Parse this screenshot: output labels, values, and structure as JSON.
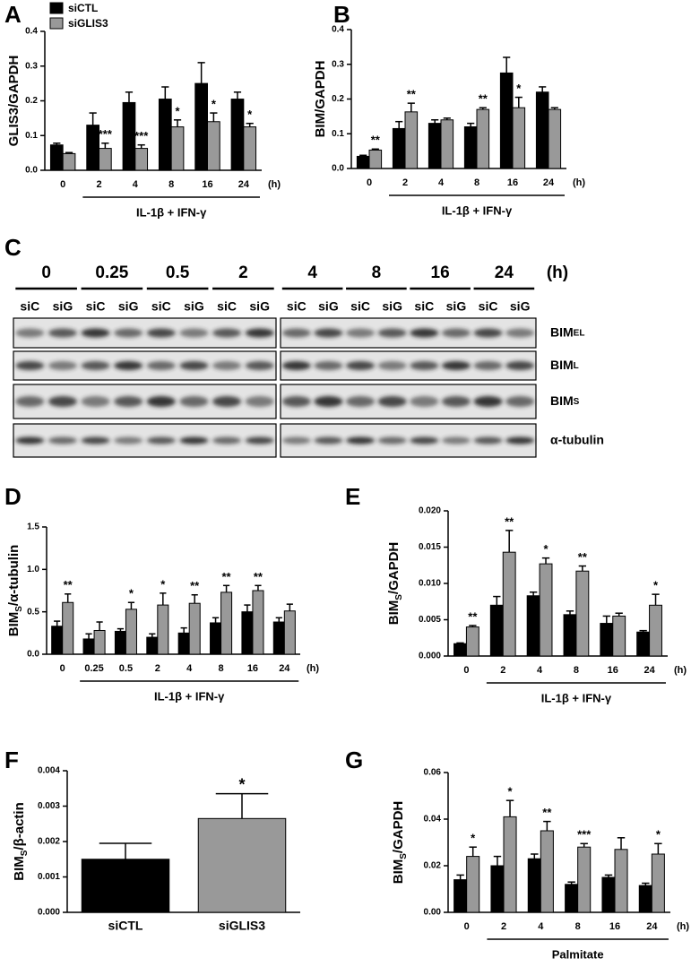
{
  "chart_data": [
    {
      "type": "bar",
      "panel": "A",
      "ylabel": "GLIS3/GAPDH",
      "categories": [
        "0",
        "2",
        "4",
        "8",
        "16",
        "24"
      ],
      "xunit": "(h)",
      "xlabel": "IL-1β + IFN-γ",
      "legend": "upper left",
      "series": [
        {
          "name": "siCTL",
          "color": "#000000",
          "values": [
            0.073,
            0.13,
            0.195,
            0.205,
            0.25,
            0.205
          ],
          "errors": [
            0.005,
            0.035,
            0.03,
            0.035,
            0.06,
            0.02
          ]
        },
        {
          "name": "siGLIS3",
          "color": "#999999",
          "values": [
            0.048,
            0.063,
            0.063,
            0.125,
            0.14,
            0.125
          ],
          "errors": [
            0.003,
            0.015,
            0.01,
            0.02,
            0.025,
            0.01
          ]
        }
      ],
      "annotations": [
        null,
        "***",
        "***",
        "*",
        "*",
        "*"
      ],
      "ylim": [
        0,
        0.4
      ],
      "yticks": [
        {
          "value": 0,
          "label": "0.0"
        },
        0.1,
        0.2,
        0.3,
        0.4
      ]
    },
    {
      "type": "bar",
      "panel": "B",
      "ylabel": "BIM/GAPDH",
      "categories": [
        "0",
        "2",
        "4",
        "8",
        "16",
        "24"
      ],
      "xunit": "(h)",
      "xlabel": "IL-1β + IFN-γ",
      "series": [
        {
          "color": "#000000",
          "values": [
            0.035,
            0.115,
            0.13,
            0.12,
            0.275,
            0.22
          ],
          "errors": [
            0.003,
            0.02,
            0.01,
            0.01,
            0.045,
            0.015
          ]
        },
        {
          "color": "#999999",
          "values": [
            0.053,
            0.163,
            0.14,
            0.17,
            0.175,
            0.17
          ],
          "errors": [
            0.003,
            0.025,
            0.005,
            0.005,
            0.03,
            0.005
          ]
        }
      ],
      "annotations": [
        "**",
        "**",
        null,
        "**",
        "*",
        null
      ],
      "ylim": [
        0,
        0.4
      ],
      "yticks": [
        {
          "value": 0,
          "label": "0.0"
        },
        0.1,
        0.2,
        0.3,
        0.4
      ]
    },
    {
      "type": "bar",
      "panel": "D",
      "ylabel": [
        "BIM",
        "S",
        "/α-tubulin"
      ],
      "categories": [
        "0",
        "0.25",
        "0.5",
        "2",
        "4",
        "8",
        "16",
        "24"
      ],
      "xunit": "(h)",
      "xlabel": "IL-1β + IFN-γ",
      "series": [
        {
          "color": "#000000",
          "values": [
            0.33,
            0.18,
            0.27,
            0.2,
            0.25,
            0.37,
            0.5,
            0.38
          ],
          "errors": [
            0.06,
            0.06,
            0.03,
            0.04,
            0.06,
            0.06,
            0.08,
            0.05
          ]
        },
        {
          "color": "#999999",
          "values": [
            0.61,
            0.28,
            0.53,
            0.58,
            0.6,
            0.73,
            0.75,
            0.51
          ],
          "errors": [
            0.1,
            0.1,
            0.08,
            0.14,
            0.1,
            0.08,
            0.06,
            0.08
          ]
        }
      ],
      "annotations": [
        "**",
        null,
        "*",
        "*",
        "**",
        "**",
        "**",
        null
      ],
      "ylim": [
        0,
        1.5
      ],
      "yticks": [
        {
          "value": 0,
          "label": "0.0"
        },
        0.5,
        {
          "value": 1,
          "label": "1.0"
        },
        1.5
      ]
    },
    {
      "type": "bar",
      "panel": "E",
      "ylabel": [
        "BIM",
        "S",
        "/GAPDH"
      ],
      "categories": [
        "0",
        "2",
        "4",
        "8",
        "16",
        "24"
      ],
      "xunit": "(h)",
      "xlabel": "IL-1β + IFN-γ",
      "series": [
        {
          "color": "#000000",
          "values": [
            0.0017,
            0.007,
            0.0083,
            0.0057,
            0.0045,
            0.0033
          ],
          "errors": [
            0.0001,
            0.0012,
            0.0005,
            0.0005,
            0.001,
            0.0002
          ]
        },
        {
          "color": "#999999",
          "values": [
            0.004,
            0.0143,
            0.0127,
            0.0117,
            0.0055,
            0.007
          ],
          "errors": [
            0.0002,
            0.003,
            0.0008,
            0.0007,
            0.0004,
            0.0015
          ]
        }
      ],
      "annotations": [
        "**",
        "**",
        "*",
        "**",
        null,
        "*"
      ],
      "ylim": [
        0,
        0.02
      ],
      "yticks": [
        {
          "value": 0,
          "label": "0.000"
        },
        0.005,
        {
          "value": 0.01,
          "label": "0.010"
        },
        0.015,
        {
          "value": 0.02,
          "label": "0.020"
        }
      ]
    },
    {
      "type": "bar",
      "panel": "F",
      "ylabel": [
        "BIM",
        "S",
        "/β-actin"
      ],
      "categories": [
        "siCTL",
        "siGLIS3"
      ],
      "values": [
        0.0015,
        0.00265
      ],
      "errors": [
        0.00045,
        0.0007
      ],
      "colors": [
        "#000000",
        "#999999"
      ],
      "annotations": [
        null,
        "*"
      ],
      "ylim": [
        0,
        0.004
      ],
      "yticks": [
        {
          "value": 0,
          "label": "0.000"
        },
        0.001,
        0.002,
        0.003,
        0.004
      ]
    },
    {
      "type": "bar",
      "panel": "G",
      "ylabel": [
        "BIM",
        "S",
        "/GAPDH"
      ],
      "categories": [
        "0",
        "2",
        "4",
        "8",
        "16",
        "24"
      ],
      "xunit": "(h)",
      "xlabel": "Palmitate",
      "series": [
        {
          "color": "#000000",
          "values": [
            0.014,
            0.02,
            0.023,
            0.012,
            0.015,
            0.0115
          ],
          "errors": [
            0.002,
            0.004,
            0.002,
            0.001,
            0.001,
            0.001
          ]
        },
        {
          "color": "#999999",
          "values": [
            0.024,
            0.041,
            0.035,
            0.028,
            0.027,
            0.025
          ],
          "errors": [
            0.004,
            0.007,
            0.004,
            0.0015,
            0.005,
            0.0045
          ]
        }
      ],
      "annotations": [
        "*",
        "*",
        "**",
        "***",
        null,
        "*"
      ],
      "ylim": [
        0,
        0.06
      ],
      "yticks": [
        {
          "value": 0,
          "label": "0.00"
        },
        0.02,
        0.04,
        0.06
      ]
    }
  ],
  "blot": {
    "panel": "C",
    "times": [
      "0",
      "0.25",
      "0.5",
      "2",
      "4",
      "8",
      "16",
      "24"
    ],
    "unit": "(h)",
    "lanes": [
      "siC",
      "siG"
    ],
    "rows": [
      [
        "BIM",
        "EL"
      ],
      [
        "BIM",
        "L"
      ],
      [
        "BIM",
        "S"
      ],
      [
        "α-tubulin"
      ]
    ]
  }
}
